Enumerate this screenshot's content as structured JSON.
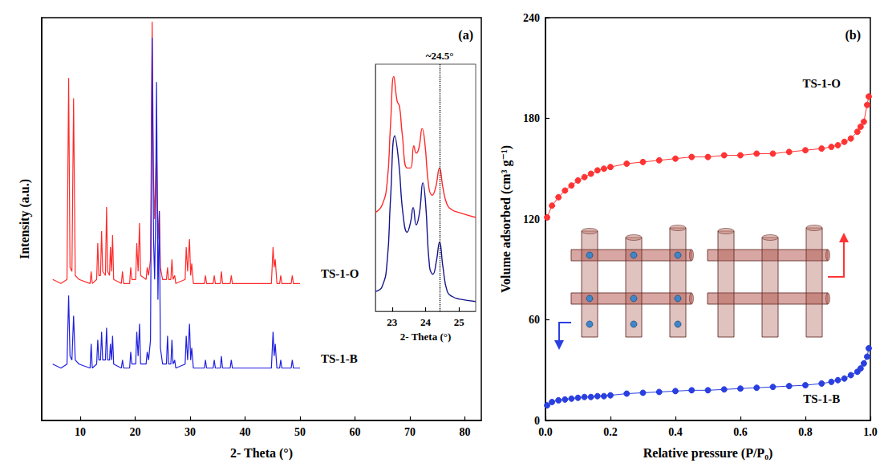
{
  "chart_data": [
    {
      "type": "line",
      "title": "(a)",
      "xlabel": "2- Theta (°)",
      "ylabel": "Intensity (a.u.)",
      "xlim": [
        3,
        83
      ],
      "xticks": [
        10,
        20,
        30,
        40,
        50,
        60,
        70,
        80
      ],
      "ylim": [
        0,
        100
      ],
      "tick_labels": "x",
      "grid": false,
      "x": [
        5.0,
        6.5,
        7.6,
        7.9,
        8.15,
        8.5,
        8.8,
        9.1,
        9.8,
        11.8,
        12.0,
        12.2,
        13.0,
        13.2,
        13.4,
        13.7,
        13.9,
        14.1,
        14.6,
        14.8,
        15.0,
        15.35,
        15.5,
        15.7,
        15.9,
        16.1,
        17.5,
        17.7,
        17.9,
        19.0,
        19.2,
        19.4,
        20.1,
        20.3,
        20.55,
        20.8,
        21.0,
        22.0,
        22.2,
        22.45,
        22.8,
        23.1,
        23.35,
        23.55,
        23.7,
        23.9,
        24.15,
        24.4,
        24.6,
        25.0,
        25.7,
        25.9,
        26.1,
        26.5,
        26.7,
        26.9,
        27.2,
        27.4,
        29.1,
        29.3,
        29.55,
        29.9,
        30.1,
        30.3,
        30.6,
        32.6,
        32.8,
        33.0,
        34.2,
        34.4,
        34.6,
        35.5,
        35.7,
        35.9,
        37.3,
        37.5,
        37.7,
        44.8,
        45.1,
        45.3,
        45.5,
        45.8,
        46.3,
        46.5,
        46.7,
        48.4,
        48.6,
        48.8,
        50.0
      ],
      "series": [
        {
          "name": "TS-1-O",
          "color": "#ff2a2a",
          "values": [
            35,
            34,
            35,
            85,
            38,
            37,
            80,
            36,
            35,
            34,
            37,
            34,
            35,
            44,
            36,
            36,
            47,
            37,
            36,
            53,
            37,
            36,
            43,
            37,
            46,
            35,
            34,
            37,
            34,
            34,
            38,
            35,
            35,
            44,
            37,
            49,
            36,
            35,
            38,
            36,
            40,
            99,
            60,
            50,
            58,
            68,
            45,
            52,
            38,
            35,
            35,
            38,
            35,
            35,
            40,
            35,
            36,
            34,
            35,
            43,
            37,
            45,
            36,
            39,
            34,
            34,
            36,
            34,
            34,
            36,
            34,
            34,
            37,
            34,
            34,
            36,
            34,
            34,
            43,
            38,
            40,
            34,
            34,
            36,
            34,
            34,
            36,
            34,
            34
          ]
        },
        {
          "name": "TS-1-B",
          "color": "#1f1fe0",
          "values": [
            14,
            13,
            14,
            31,
            16,
            15,
            26,
            15,
            14,
            13,
            19,
            13,
            14,
            20,
            15,
            15,
            22,
            15,
            15,
            23,
            15,
            15,
            19,
            15,
            21,
            14,
            13,
            15,
            13,
            13,
            17,
            14,
            14,
            22,
            16,
            24,
            14,
            14,
            17,
            15,
            20,
            95,
            45,
            35,
            48,
            84,
            30,
            52,
            18,
            14,
            14,
            21,
            14,
            14,
            20,
            14,
            15,
            13,
            14,
            21,
            15,
            24,
            15,
            18,
            13,
            13,
            15,
            13,
            13,
            15,
            13,
            13,
            16,
            13,
            13,
            15,
            13,
            13,
            22,
            16,
            19,
            13,
            13,
            15,
            13,
            13,
            15,
            13,
            13
          ]
        }
      ],
      "inset": {
        "type": "line",
        "xlabel": "2- Theta (°)",
        "xlim": [
          22.5,
          25.5
        ],
        "xticks": [
          23,
          24,
          25
        ],
        "ylim": [
          0,
          100
        ],
        "tick_labels": "x",
        "grid": false,
        "series": [
          {
            "color": "#ff2a2a",
            "x": [
              22.5,
              22.7,
              22.85,
              22.95,
              23.05,
              23.15,
              23.22,
              23.3,
              23.45,
              23.55,
              23.65,
              23.72,
              23.8,
              23.9,
              23.98,
              24.1,
              24.2,
              24.3,
              24.42,
              24.52,
              24.65,
              24.8,
              25.0,
              25.5
            ],
            "values": [
              40,
              43,
              52,
              75,
              95,
              85,
              83,
              72,
              58,
              58,
              67,
              64,
              66,
              74,
              68,
              50,
              47,
              50,
              58,
              50,
              43,
              41,
              40,
              38
            ]
          },
          {
            "color": "#14148c",
            "x": [
              22.5,
              22.7,
              22.85,
              22.95,
              23.08,
              23.2,
              23.32,
              23.45,
              23.55,
              23.63,
              23.72,
              23.82,
              23.92,
              24.0,
              24.12,
              24.22,
              24.32,
              24.42,
              24.52,
              24.65,
              24.8,
              25.0,
              25.5
            ],
            "values": [
              8,
              10,
              20,
              45,
              71,
              60,
              40,
              32,
              36,
              42,
              35,
              40,
              52,
              44,
              18,
              15,
              20,
              28,
              18,
              8,
              6,
              5,
              4
            ]
          }
        ],
        "annotations": [
          {
            "text": "~24.5°",
            "x": 24.42,
            "line_style": "dotted"
          }
        ]
      }
    },
    {
      "type": "line",
      "title": "(b)",
      "xlabel": "Relative pressure (P/P₀)",
      "ylabel": "Volume adsorbed (cm³ g⁻¹)",
      "xlim": [
        0,
        1
      ],
      "xticks": [
        {
          "value": 0,
          "label": "0.0"
        },
        0.2,
        0.4,
        0.6,
        0.8,
        {
          "value": 1,
          "label": "1.0"
        }
      ],
      "ylim": [
        0,
        240
      ],
      "yticks": [
        0,
        60,
        120,
        180,
        240
      ],
      "grid": false,
      "marker": "circle",
      "x": [
        0.005,
        0.02,
        0.04,
        0.06,
        0.08,
        0.1,
        0.12,
        0.14,
        0.16,
        0.18,
        0.2,
        0.25,
        0.3,
        0.35,
        0.4,
        0.45,
        0.5,
        0.55,
        0.6,
        0.65,
        0.7,
        0.75,
        0.8,
        0.85,
        0.88,
        0.9,
        0.92,
        0.94,
        0.96,
        0.97,
        0.98,
        0.99,
        0.995
      ],
      "series": [
        {
          "name": "TS-1-O",
          "color": "#ff3333",
          "values": [
            121,
            128,
            133,
            137,
            140,
            143,
            145,
            147,
            149,
            150,
            151,
            153,
            154,
            155,
            156,
            157,
            157,
            158,
            158,
            159,
            159,
            160,
            161,
            162,
            163,
            164,
            166,
            168,
            172,
            175,
            178,
            188,
            193
          ]
        },
        {
          "name": "TS-1-B",
          "color": "#2a3fe0",
          "values": [
            9,
            11,
            12,
            12.5,
            13,
            13.5,
            14,
            14,
            14.5,
            14.5,
            15,
            16,
            16.5,
            17,
            17.5,
            18,
            18,
            18.5,
            19,
            19.5,
            20,
            20.5,
            21,
            22,
            23,
            24,
            25,
            27,
            29,
            31,
            34,
            38,
            43
          ]
        }
      ]
    }
  ]
}
